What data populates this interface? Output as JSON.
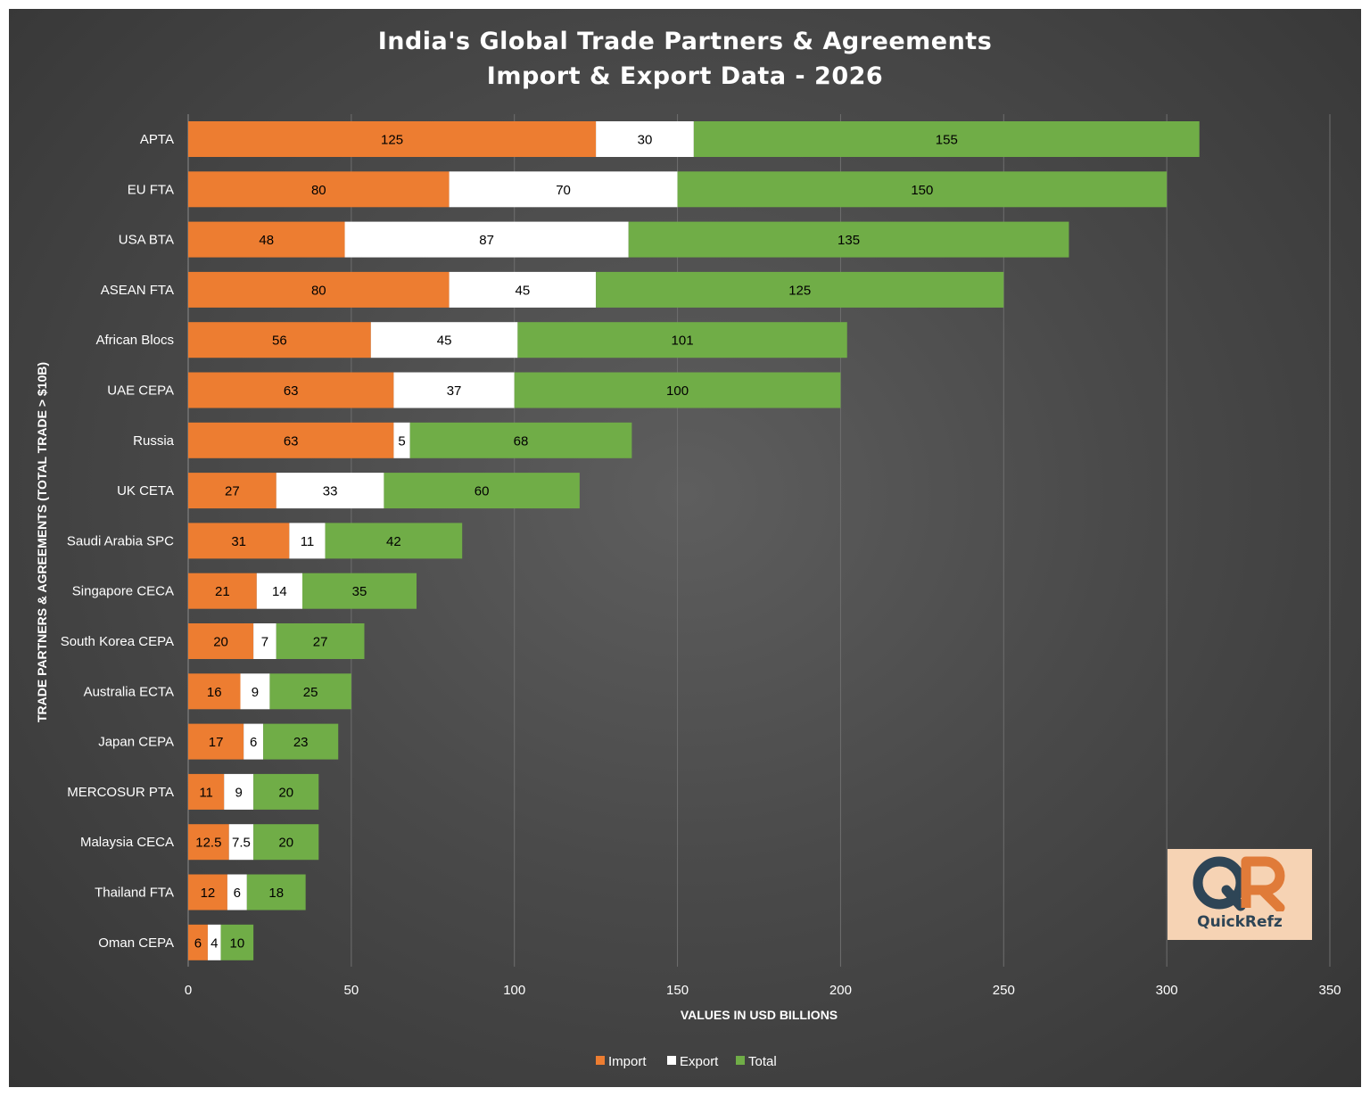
{
  "title_lines": [
    "India's Global Trade Partners & Agreements",
    "Import & Export Data - 2026"
  ],
  "colors": {
    "import": "#ed7d31",
    "export": "#ffffff",
    "total": "#70ad47",
    "grid": "#6e6e6e",
    "logo_bg": "#f6d3b4",
    "logo_dark": "#2e4556",
    "logo_orange": "#e07b39"
  },
  "logo": {
    "text": "QuickRefz",
    "icon": "quickrefz-qr-logo"
  },
  "chart_data": {
    "type": "bar",
    "orientation": "horizontal",
    "stacked": true,
    "title": "India's Global Trade Partners & Agreements Import & Export Data - 2026",
    "xlabel": "VALUES IN USD BILLIONS",
    "ylabel": "TRADE PARTNERS & AGREEMENTS (TOTAL TRADE > $10B)",
    "xlim": [
      0,
      350
    ],
    "xticks": [
      0,
      50,
      100,
      150,
      200,
      250,
      300,
      350
    ],
    "grid": true,
    "legend_position": "bottom",
    "categories": [
      "APTA",
      "EU FTA",
      "USA BTA",
      "ASEAN FTA",
      "African Blocs",
      "UAE CEPA",
      "Russia",
      "UK CETA",
      "Saudi Arabia SPC",
      "Singapore CECA",
      "South Korea CEPA",
      "Australia ECTA",
      "Japan CEPA",
      "MERCOSUR PTA",
      "Malaysia CECA",
      "Thailand FTA",
      "Oman CEPA"
    ],
    "series": [
      {
        "name": "Import",
        "values": [
          125,
          80,
          48,
          80,
          56,
          63,
          63,
          27,
          31,
          21,
          20,
          16,
          17,
          11,
          12.5,
          12,
          6
        ]
      },
      {
        "name": "Export",
        "values": [
          30,
          70,
          87,
          45,
          45,
          37,
          5,
          33,
          11,
          14,
          7,
          9,
          6,
          9,
          7.5,
          6,
          4
        ]
      },
      {
        "name": "Total",
        "values": [
          155,
          150,
          135,
          125,
          101,
          100,
          68,
          60,
          42,
          35,
          27,
          25,
          23,
          20,
          20,
          18,
          10
        ]
      }
    ]
  }
}
